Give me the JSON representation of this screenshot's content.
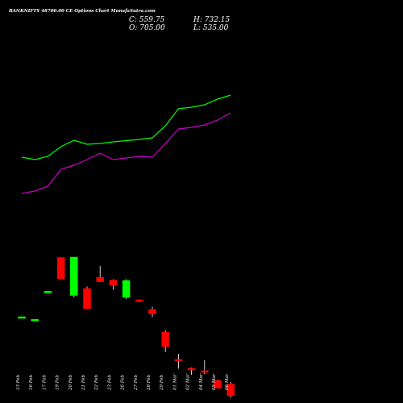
{
  "chart_data": {
    "type": "candlestick",
    "title": "BANKNIFTY 48700.00 CE Options Chart MunafaSutra.com",
    "ohlc": {
      "close_label": "C: 559.75",
      "open_label": "O: 705.00",
      "high_label": "H: 732.15",
      "low_label": "L: 535.00"
    },
    "categories": [
      "13 Feb",
      "16 Feb",
      "17 Feb",
      "19 Feb",
      "20 Feb",
      "21 Feb",
      "22 Feb",
      "23 Feb",
      "26 Feb",
      "27 Feb",
      "28 Feb",
      "29 Feb",
      "01 Mar",
      "02 Mar",
      "04 Mar",
      "05 Mar",
      "06 Mar"
    ],
    "candles": [
      {
        "open": 1540,
        "high": 1541,
        "low": 1539,
        "close": 1540
      },
      {
        "open": 1507,
        "high": 1508,
        "low": 1506,
        "close": 1507
      },
      {
        "open": 1856,
        "high": 1857,
        "low": 1855,
        "close": 1856
      },
      {
        "open": 2275,
        "high": 2275,
        "low": 2010,
        "close": 2010
      },
      {
        "open": 1805,
        "high": 2280,
        "low": 1780,
        "close": 2280
      },
      {
        "open": 1890,
        "high": 1915,
        "low": 1640,
        "close": 1640
      },
      {
        "open": 2030,
        "high": 2170,
        "low": 1970,
        "close": 1975
      },
      {
        "open": 1995,
        "high": 2005,
        "low": 1875,
        "close": 1930
      },
      {
        "open": 1780,
        "high": 2005,
        "low": 1760,
        "close": 1990
      },
      {
        "open": 1750,
        "high": 1755,
        "low": 1720,
        "close": 1740
      },
      {
        "open": 1630,
        "high": 1665,
        "low": 1535,
        "close": 1575
      },
      {
        "open": 1350,
        "high": 1375,
        "low": 1100,
        "close": 1170
      },
      {
        "open": 1010,
        "high": 1080,
        "low": 895,
        "close": 995
      },
      {
        "open": 900,
        "high": 910,
        "low": 820,
        "close": 890
      },
      {
        "open": 870,
        "high": 1000,
        "low": 830,
        "close": 855
      },
      {
        "open": 750,
        "high": 760,
        "low": 650,
        "close": 655
      },
      {
        "open": 705,
        "high": 732.15,
        "low": 535,
        "close": 559.75
      }
    ],
    "upper_band": [
      1750,
      1780,
      1740,
      1620,
      1540,
      1590,
      1580,
      1560,
      1545,
      1530,
      1510,
      1360,
      1150,
      1130,
      1100,
      1030,
      980
    ],
    "lower_band": [
      2200,
      2170,
      2110,
      1900,
      1850,
      1780,
      1700,
      1780,
      1760,
      1740,
      1750,
      1580,
      1400,
      1380,
      1350,
      1290,
      1200
    ],
    "upper_color": "#00ff00",
    "lower_color": "#cc00cc",
    "up_color": "#00ff00",
    "down_color": "#ff0000"
  }
}
